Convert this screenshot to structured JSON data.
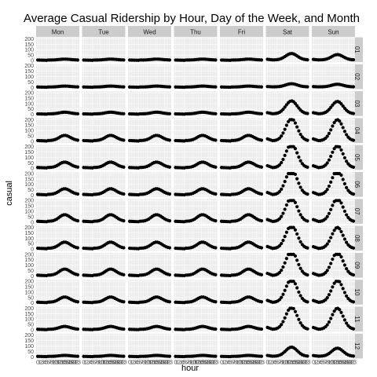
{
  "chart_data": {
    "type": "scatter",
    "title": "Average Casual Ridership by Hour, Day of the Week, and Month",
    "xlabel": "hour",
    "ylabel": "casual",
    "columns": [
      "Mon",
      "Tue",
      "Wed",
      "Thu",
      "Fri",
      "Sat",
      "Sun"
    ],
    "rows": [
      "01",
      "02",
      "03",
      "04",
      "05",
      "06",
      "07",
      "08",
      "09",
      "10",
      "11",
      "12"
    ],
    "x": [
      0,
      1,
      2,
      3,
      4,
      5,
      6,
      7,
      8,
      9,
      10,
      11,
      12,
      13,
      14,
      15,
      16,
      17,
      18,
      19,
      20,
      21,
      22,
      23
    ],
    "xlim": [
      0,
      23
    ],
    "ylim": [
      0,
      200
    ],
    "y_ticks": [
      0,
      50,
      100,
      150,
      200
    ],
    "x_tick_labels": [
      "0",
      "1",
      "2",
      "3",
      "4",
      "5",
      "6",
      "7",
      "8",
      "9",
      "10",
      "11",
      "12",
      "13",
      "14",
      "15",
      "16",
      "17",
      "18",
      "19",
      "20",
      "21",
      "22",
      "23"
    ],
    "grid": true,
    "weekday_peak_by_month": [
      14,
      14,
      22,
      60,
      62,
      65,
      75,
      70,
      70,
      60,
      35,
      15
    ],
    "weekend_peak_by_month": {
      "Sat": [
        65,
        35,
        125,
        210,
        225,
        240,
        225,
        220,
        230,
        220,
        210,
        90
      ],
      "Sun": [
        55,
        30,
        120,
        200,
        210,
        230,
        220,
        200,
        220,
        210,
        200,
        80
      ]
    }
  }
}
